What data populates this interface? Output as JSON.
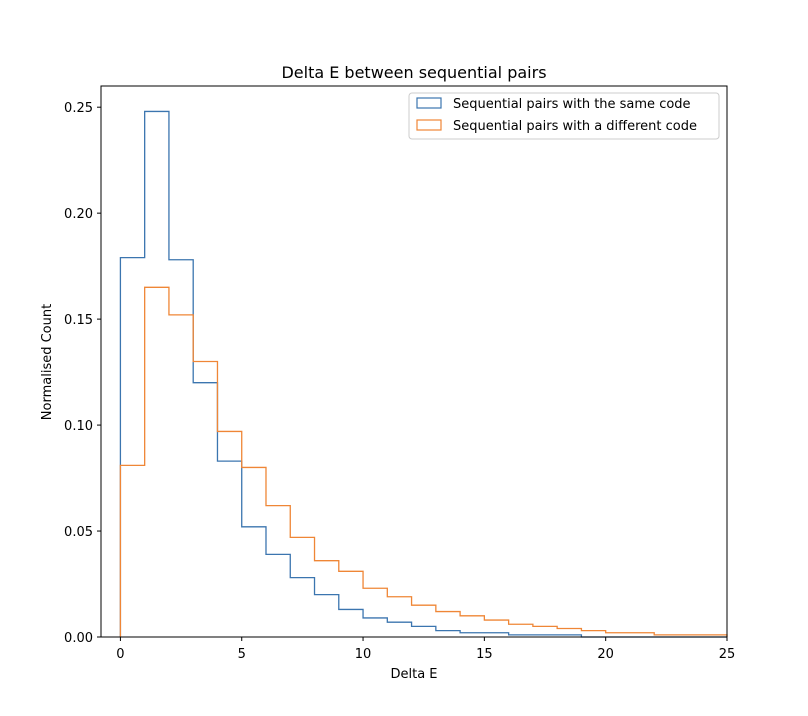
{
  "chart_data": {
    "type": "histogram-step",
    "title": "Delta E between sequential pairs",
    "xlabel": "Delta E",
    "ylabel": "Normalised Count",
    "xlim": [
      -0.8,
      25
    ],
    "ylim": [
      0,
      0.26
    ],
    "xticks": [
      0,
      5,
      10,
      15,
      20,
      25
    ],
    "yticks": [
      0.0,
      0.05,
      0.1,
      0.15,
      0.2,
      0.25
    ],
    "ytick_labels": [
      "0.00",
      "0.05",
      "0.10",
      "0.15",
      "0.20",
      "0.25"
    ],
    "legend_position": "top-right",
    "bin_edges": [
      0,
      1,
      2,
      3,
      4,
      5,
      6,
      7,
      8,
      9,
      10,
      11,
      12,
      13,
      14,
      15,
      16,
      17,
      18,
      19,
      20,
      21,
      22,
      23,
      24,
      25
    ],
    "series": [
      {
        "name": "Sequential pairs with the same code",
        "color": "#3b75af",
        "values": [
          0.179,
          0.248,
          0.178,
          0.12,
          0.083,
          0.052,
          0.039,
          0.028,
          0.02,
          0.013,
          0.009,
          0.007,
          0.005,
          0.003,
          0.002,
          0.002,
          0.001,
          0.001,
          0.001,
          0.0,
          0.0,
          0.0,
          0.0,
          0.0,
          0.0
        ]
      },
      {
        "name": "Sequential pairs with a different code",
        "color": "#ef8636",
        "values": [
          0.081,
          0.165,
          0.152,
          0.13,
          0.097,
          0.08,
          0.062,
          0.047,
          0.036,
          0.031,
          0.023,
          0.019,
          0.015,
          0.012,
          0.01,
          0.008,
          0.006,
          0.005,
          0.004,
          0.003,
          0.002,
          0.002,
          0.001,
          0.001,
          0.001
        ]
      }
    ]
  }
}
